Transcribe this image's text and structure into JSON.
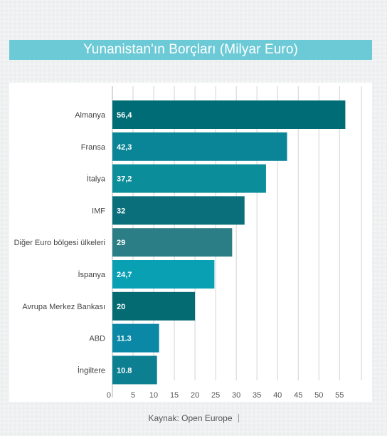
{
  "title": "Yunanistan'ın Borçları (Milyar Euro)",
  "source": "Kaynak: Open Europe",
  "colors": {
    "title_bg": "#6ccad6",
    "bars": [
      "#006d76",
      "#0a8597",
      "#0c8d9a",
      "#0a6f7a",
      "#2b7d86",
      "#0aa0b4",
      "#056b73",
      "#0a88a6",
      "#0c7f90"
    ]
  },
  "chart_data": {
    "type": "bar",
    "orientation": "horizontal",
    "title": "Yunanistan'ın Borçları (Milyar Euro)",
    "categories": [
      "Almanya",
      "Fransa",
      "İtalya",
      "IMF",
      "Diğer Euro bölgesi ülkeleri",
      "İspanya",
      "Avrupa Merkez Bankası",
      "ABD",
      "İngiltere"
    ],
    "values": [
      56.4,
      42.3,
      37.2,
      32,
      29,
      24.7,
      20,
      11.3,
      10.8
    ],
    "value_labels": [
      "56,4",
      "42,3",
      "37,2",
      "32",
      "29",
      "24,7",
      "20",
      "11.3",
      "10.8"
    ],
    "xlim": [
      0,
      57
    ],
    "xticks": [
      0,
      5,
      10,
      15,
      20,
      25,
      30,
      35,
      40,
      45,
      50,
      55
    ],
    "grid": true,
    "xlabel": "",
    "ylabel": ""
  }
}
